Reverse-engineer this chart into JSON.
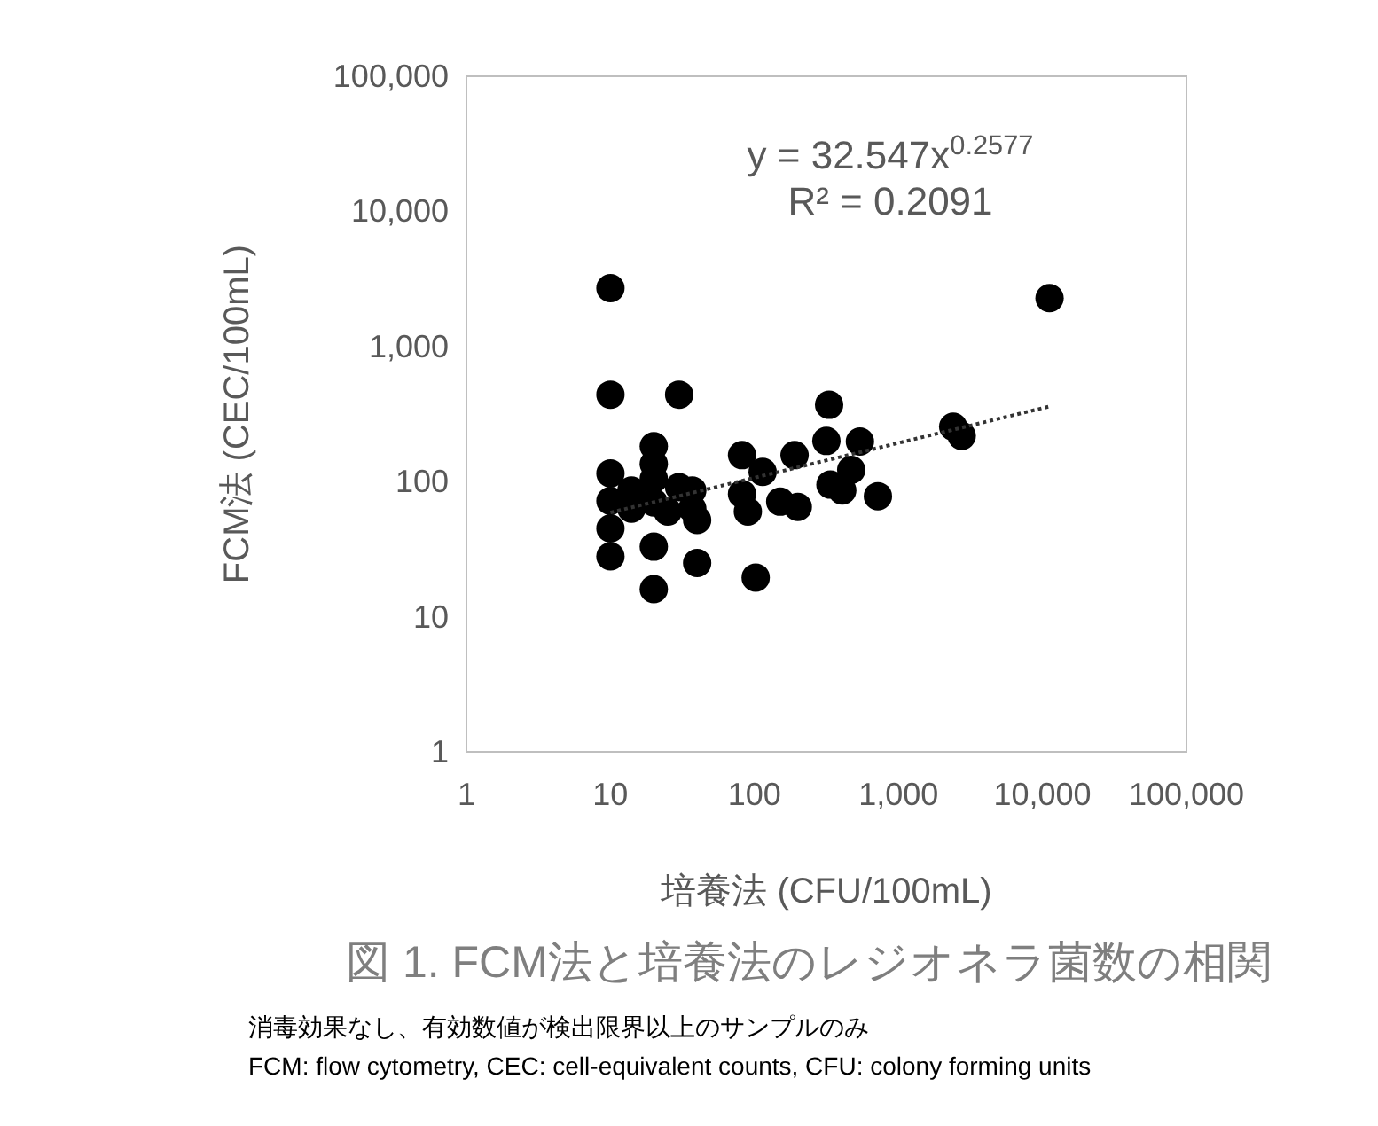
{
  "chart_data": {
    "type": "scatter",
    "title": "図 1. FCM法と培養法のレジオネラ菌数の相関",
    "xlabel": "培養法 (CFU/100mL)",
    "ylabel": "FCM法 (CEC/100mL)",
    "log": "xy",
    "xlim": [
      1,
      100000
    ],
    "ylim": [
      1,
      100000
    ],
    "xticks": [
      {
        "value": 1,
        "label": "1"
      },
      {
        "value": 10,
        "label": "10"
      },
      {
        "value": 100,
        "label": "100"
      },
      {
        "value": 1000,
        "label": "1,000"
      },
      {
        "value": 10000,
        "label": "10,000"
      },
      {
        "value": 100000,
        "label": "100,000"
      }
    ],
    "yticks": [
      {
        "value": 1,
        "label": "1"
      },
      {
        "value": 10,
        "label": "10"
      },
      {
        "value": 100,
        "label": "100"
      },
      {
        "value": 1000,
        "label": "1,000"
      },
      {
        "value": 10000,
        "label": "10,000"
      },
      {
        "value": 100000,
        "label": "100,000"
      }
    ],
    "grid": false,
    "series": [
      {
        "color": "#000000",
        "marker": "circle",
        "x": [
          10,
          10,
          10,
          10,
          10,
          10,
          14,
          14,
          20,
          20,
          20,
          20,
          20,
          20,
          25,
          30,
          30,
          37,
          37,
          40,
          40,
          82,
          82,
          90,
          102,
          114,
          151,
          190,
          200,
          316,
          330,
          337,
          407,
          470,
          540,
          720,
          2400,
          2750,
          11200
        ],
        "values": [
          2700,
          440,
          115,
          72,
          45,
          28,
          86,
          63,
          183,
          135,
          105,
          70,
          33,
          16,
          60,
          440,
          91,
          86,
          63,
          52,
          25,
          157,
          81,
          60,
          19.5,
          118,
          71,
          157,
          65,
          200,
          370,
          95,
          86,
          122,
          198,
          78,
          255,
          218,
          2280
        ]
      },
      {
        "type": "line",
        "color": "#333333",
        "marker": "none",
        "line_style": "dotted",
        "x": [
          10,
          11200
        ],
        "values": [
          59,
          360
        ]
      }
    ],
    "annotations": [
      "y = 32.547x$^{0.2577}$",
      "R² = 0.2091",
      "消毒効果なし、有効数値が検出限界以上のサンプルのみ",
      "FCM: flow cytometry, CEC: cell-equivalent counts, CFU: colony forming units"
    ]
  }
}
